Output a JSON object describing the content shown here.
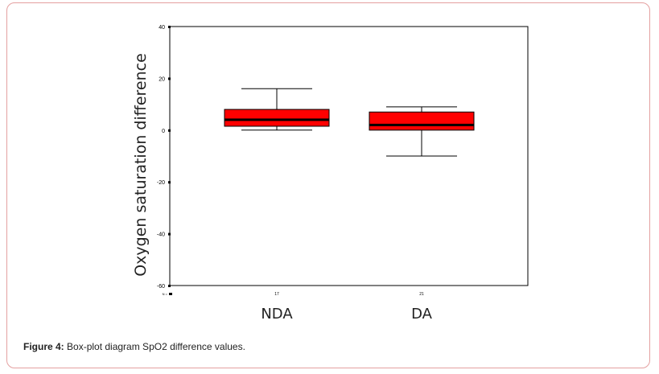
{
  "figure": {
    "label": "Figure 4:",
    "caption": "Box-plot diagram SpO2 difference values."
  },
  "colors": {
    "box_fill": "#ff0000",
    "median": "#000000",
    "frame": "#e4a0a0"
  },
  "chart_data": {
    "type": "box",
    "ylabel": "Oxygen saturation difference",
    "ylim": [
      -60,
      40
    ],
    "yticks": [
      40,
      20,
      0,
      -20,
      -40,
      -60
    ],
    "n_label": "N =",
    "categories": [
      "NDA",
      "DA"
    ],
    "n_values": [
      "17",
      "21"
    ],
    "boxes": [
      {
        "name": "NDA",
        "whisker_low": 0,
        "q1": 1.5,
        "median": 4,
        "q3": 8,
        "whisker_high": 16
      },
      {
        "name": "DA",
        "whisker_low": -10,
        "q1": 0,
        "median": 2,
        "q3": 7,
        "whisker_high": 9
      }
    ]
  }
}
